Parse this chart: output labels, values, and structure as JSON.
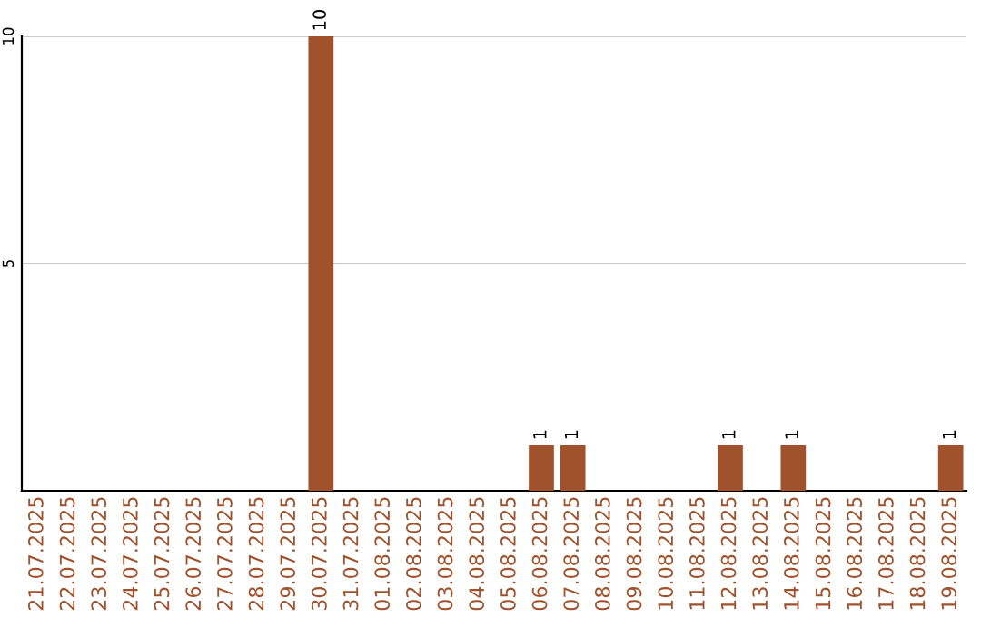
{
  "chart_data": {
    "type": "bar",
    "categories": [
      "21.07.2025",
      "22.07.2025",
      "23.07.2025",
      "24.07.2025",
      "25.07.2025",
      "26.07.2025",
      "27.07.2025",
      "28.07.2025",
      "29.07.2025",
      "30.07.2025",
      "31.07.2025",
      "01.08.2025",
      "02.08.2025",
      "03.08.2025",
      "04.08.2025",
      "05.08.2025",
      "06.08.2025",
      "07.08.2025",
      "08.08.2025",
      "09.08.2025",
      "10.08.2025",
      "11.08.2025",
      "12.08.2025",
      "13.08.2025",
      "14.08.2025",
      "15.08.2025",
      "16.08.2025",
      "17.08.2025",
      "18.08.2025",
      "19.08.2025"
    ],
    "values": [
      0,
      0,
      0,
      0,
      0,
      0,
      0,
      0,
      0,
      10,
      0,
      0,
      0,
      0,
      0,
      0,
      1,
      1,
      0,
      0,
      0,
      0,
      1,
      0,
      1,
      0,
      0,
      0,
      0,
      1
    ],
    "value_labels": [
      null,
      null,
      null,
      null,
      null,
      null,
      null,
      null,
      null,
      "10",
      null,
      null,
      null,
      null,
      null,
      null,
      "1",
      "1",
      null,
      null,
      null,
      null,
      "1",
      null,
      "1",
      null,
      null,
      null,
      null,
      "1"
    ],
    "color": "#a0522d",
    "ylim": [
      0,
      10
    ],
    "yticks": [
      5,
      10
    ],
    "grid": "y"
  }
}
